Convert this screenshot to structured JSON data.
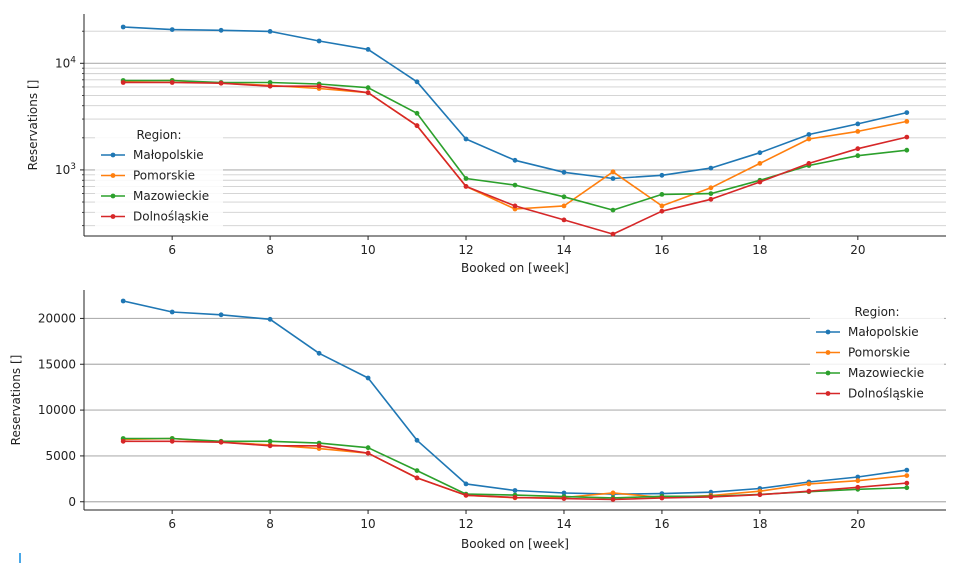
{
  "chart_data": [
    {
      "type": "line",
      "yscale": "log",
      "title": "",
      "xlabel": "Booked on [week]",
      "ylabel": "Reservations []",
      "xlim": [
        4.2,
        21.8
      ],
      "ylim": [
        240,
        29000
      ],
      "x_ticks": [
        6,
        8,
        10,
        12,
        14,
        16,
        18,
        20
      ],
      "y_ticks": [
        1000,
        10000
      ],
      "grid": "y major and minor",
      "legend": {
        "title": "Region:",
        "position": "center-left"
      },
      "x": [
        5,
        6,
        7,
        8,
        9,
        10,
        11,
        12,
        13,
        14,
        15,
        16,
        17,
        18,
        19,
        20,
        21
      ],
      "series": [
        {
          "name": "Małopolskie",
          "color": "#1f77b4",
          "values": [
            21900,
            20700,
            20400,
            19900,
            16200,
            13500,
            6700,
            1950,
            1230,
            950,
            830,
            890,
            1040,
            1450,
            2150,
            2700,
            3450
          ]
        },
        {
          "name": "Pomorskie",
          "color": "#ff7f0e",
          "values": [
            6800,
            6900,
            6500,
            6200,
            5800,
            5300,
            2600,
            700,
            430,
            460,
            960,
            460,
            680,
            1150,
            1950,
            2300,
            2850
          ]
        },
        {
          "name": "Mazowieckie",
          "color": "#2ca02c",
          "values": [
            6900,
            6900,
            6600,
            6600,
            6400,
            5900,
            3400,
            830,
            720,
            560,
            420,
            590,
            600,
            800,
            1100,
            1360,
            1530
          ]
        },
        {
          "name": "Dolnośląskie",
          "color": "#d62728",
          "values": [
            6600,
            6600,
            6500,
            6100,
            6100,
            5300,
            2600,
            700,
            460,
            340,
            250,
            410,
            530,
            770,
            1150,
            1580,
            2030
          ]
        }
      ]
    },
    {
      "type": "line",
      "title": "",
      "xlabel": "Booked on [week]",
      "ylabel": "Reservations []",
      "xlim": [
        4.2,
        21.8
      ],
      "ylim": [
        -900,
        23100
      ],
      "x_ticks": [
        6,
        8,
        10,
        12,
        14,
        16,
        18,
        20
      ],
      "y_ticks": [
        0,
        5000,
        10000,
        15000,
        20000
      ],
      "grid": "y major",
      "legend": {
        "title": "Region:",
        "position": "top-right"
      },
      "x": [
        5,
        6,
        7,
        8,
        9,
        10,
        11,
        12,
        13,
        14,
        15,
        16,
        17,
        18,
        19,
        20,
        21
      ],
      "series": [
        {
          "name": "Małopolskie",
          "color": "#1f77b4",
          "values": [
            21900,
            20700,
            20400,
            19900,
            16200,
            13500,
            6700,
            1950,
            1230,
            950,
            830,
            890,
            1040,
            1450,
            2150,
            2700,
            3450
          ]
        },
        {
          "name": "Pomorskie",
          "color": "#ff7f0e",
          "values": [
            6800,
            6900,
            6500,
            6200,
            5800,
            5300,
            2600,
            700,
            430,
            460,
            960,
            460,
            680,
            1150,
            1950,
            2300,
            2850
          ]
        },
        {
          "name": "Mazowieckie",
          "color": "#2ca02c",
          "values": [
            6900,
            6900,
            6600,
            6600,
            6400,
            5900,
            3400,
            830,
            720,
            560,
            420,
            590,
            600,
            800,
            1100,
            1360,
            1530
          ]
        },
        {
          "name": "Dolnośląskie",
          "color": "#d62728",
          "values": [
            6600,
            6600,
            6500,
            6100,
            6100,
            5300,
            2600,
            700,
            460,
            340,
            250,
            410,
            530,
            770,
            1150,
            1580,
            2030
          ]
        }
      ]
    }
  ]
}
